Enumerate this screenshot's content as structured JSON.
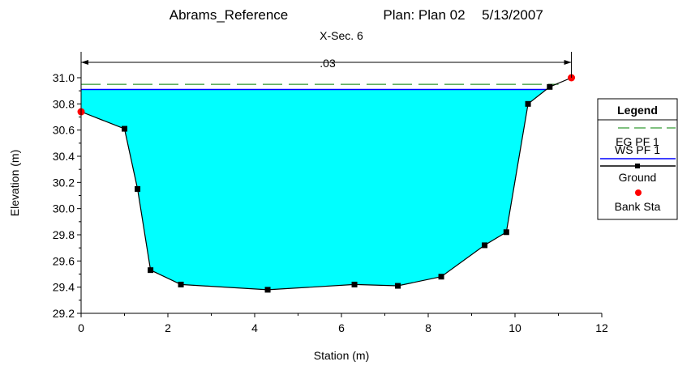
{
  "chart_data": {
    "type": "area",
    "title": {
      "project": "Abrams_Reference",
      "plan": "Plan: Plan 02",
      "date": "5/13/2007"
    },
    "subtitle": "X-Sec. 6",
    "xlabel": "Station (m)",
    "ylabel": "Elevation (m)",
    "xlim": [
      0,
      12
    ],
    "ylim": [
      29.2,
      31.1
    ],
    "x_ticks": [
      "0",
      "2",
      "4",
      "6",
      "8",
      "10",
      "12"
    ],
    "y_ticks": [
      "29.2",
      "29.4",
      "29.6",
      "29.8",
      "30.0",
      "30.2",
      "30.4",
      "30.6",
      "30.8",
      "31.0"
    ],
    "manning_n": ".03",
    "manning_span": [
      0,
      11.3
    ],
    "ground": {
      "name": "Ground",
      "x": [
        0,
        1.0,
        1.3,
        1.6,
        2.3,
        4.3,
        6.3,
        7.3,
        8.3,
        9.3,
        9.8,
        10.3,
        10.8,
        11.3
      ],
      "y": [
        30.74,
        30.61,
        30.15,
        29.53,
        29.42,
        29.38,
        29.42,
        29.41,
        29.48,
        29.72,
        29.82,
        30.8,
        30.93,
        31.0
      ]
    },
    "ws": {
      "name": "WS PF 1",
      "elevation": 30.91,
      "color": "#0000ff"
    },
    "eg": {
      "name": "EG PF 1",
      "elevation": 30.95,
      "color": "#008000"
    },
    "bank_stations": {
      "name": "Bank Sta",
      "x": [
        0,
        11.3
      ],
      "y": [
        30.74,
        31.0
      ],
      "color": "#ff0000"
    },
    "water_fill_color": "#00ffff",
    "legend": {
      "title": "Legend",
      "entries": [
        "EG PF 1",
        "WS PF 1",
        "Ground",
        "Bank Sta"
      ],
      "placement": "right"
    }
  }
}
